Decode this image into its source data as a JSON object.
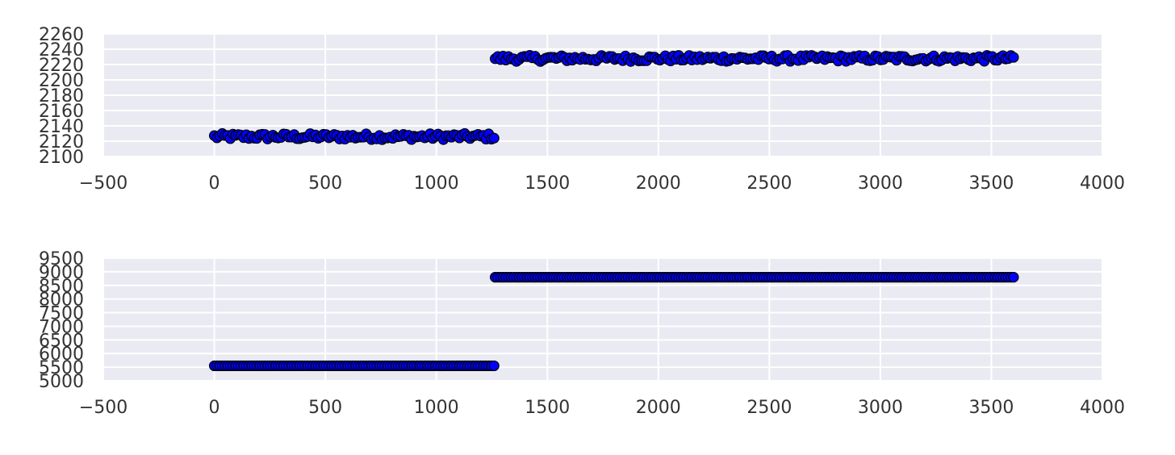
{
  "chart_data": [
    {
      "type": "scatter",
      "title": "",
      "xlabel": "",
      "ylabel": "",
      "xlim": [
        -500,
        4000
      ],
      "ylim": [
        2100,
        2260
      ],
      "xticks": [
        -500,
        0,
        500,
        1000,
        1500,
        2000,
        2500,
        3000,
        3500,
        4000
      ],
      "yticks": [
        2100,
        2120,
        2140,
        2160,
        2180,
        2200,
        2220,
        2240,
        2260
      ],
      "grid": true,
      "legend": "none",
      "point_color": "#0000ff",
      "edge_color": "#000000",
      "background_color": "#eaeaf2",
      "grid_color": "#ffffff",
      "segments": [
        {
          "x_start": 0,
          "x_end": 1260,
          "y_center": 2126,
          "y_spread": 4
        },
        {
          "x_start": 1265,
          "x_end": 3600,
          "y_center": 2228,
          "y_spread": 4
        }
      ]
    },
    {
      "type": "scatter",
      "title": "",
      "xlabel": "",
      "ylabel": "",
      "xlim": [
        -500,
        4000
      ],
      "ylim": [
        5000,
        9500
      ],
      "xticks": [
        -500,
        0,
        500,
        1000,
        1500,
        2000,
        2500,
        3000,
        3500,
        4000
      ],
      "yticks": [
        5000,
        5500,
        6000,
        6500,
        7000,
        7500,
        8000,
        8500,
        9000,
        9500
      ],
      "grid": true,
      "legend": "none",
      "point_color": "#0000ff",
      "edge_color": "#000000",
      "background_color": "#eaeaf2",
      "grid_color": "#ffffff",
      "segments": [
        {
          "x_start": 0,
          "x_end": 1260,
          "y_center": 5550,
          "y_spread": 0
        },
        {
          "x_start": 1265,
          "x_end": 3600,
          "y_center": 8800,
          "y_spread": 0
        }
      ]
    }
  ]
}
